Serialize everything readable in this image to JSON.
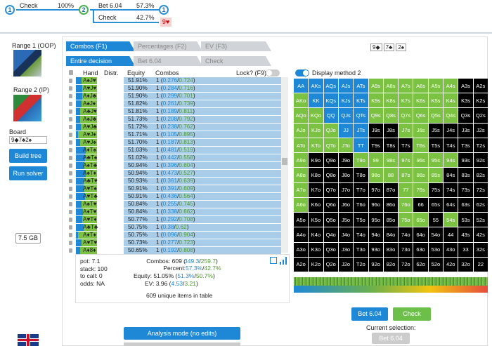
{
  "tree": {
    "n1": "1",
    "n2": "2",
    "n3": "1",
    "a1_label": "Check",
    "a1_pct": "100%",
    "a2_label": "Bet 6.04",
    "a2_pct": "57.3%",
    "a3_label": "Check",
    "a3_pct": "42.7%",
    "card": "9♥"
  },
  "left": {
    "range1": "Range 1 (OOP)",
    "range2": "Range 2 (IP)",
    "board_label": "Board",
    "board_value": "9◆7♣2♠",
    "build_tree": "Build tree",
    "run_solver": "Run solver",
    "memory": "7.5 GB"
  },
  "tabs": {
    "combos": "Combos (F1)",
    "percentages": "Percentages (F2)",
    "ev": "EV (F3)",
    "entire": "Entire decision",
    "bet": "Bet 6.04",
    "check": "Check"
  },
  "board_cards": [
    "9◆",
    "7♣",
    "2♠"
  ],
  "table": {
    "h_hand": "Hand",
    "h_distr": "Distr.",
    "h_equity": "Equity",
    "h_combos": "Combos",
    "lock": "Lock? (F9)",
    "rows": [
      {
        "hand": "A♠J♥",
        "eq": "51.91%",
        "c": "1",
        "a": "0.276",
        "b": "0.724"
      },
      {
        "hand": "A♥J♥",
        "eq": "51.90%",
        "c": "1",
        "a": "0.284",
        "b": "0.716"
      },
      {
        "hand": "A♦J♣",
        "eq": "51.90%",
        "c": "1",
        "a": "0.299",
        "b": "0.701"
      },
      {
        "hand": "A♠J♦",
        "eq": "51.82%",
        "c": "1",
        "a": "0.261",
        "b": "0.739"
      },
      {
        "hand": "A♣J♥",
        "eq": "51.81%",
        "c": "1",
        "a": "0.189",
        "b": "0.811"
      },
      {
        "hand": "A♠J♣",
        "eq": "51.73%",
        "c": "1",
        "a": "0.208",
        "b": "0.792"
      },
      {
        "hand": "A♥J♣",
        "eq": "51.72%",
        "c": "1",
        "a": "0.238",
        "b": "0.762"
      },
      {
        "hand": "A♥J♦",
        "eq": "51.71%",
        "c": "1",
        "a": "0.105",
        "b": "0.895"
      },
      {
        "hand": "A♥J♠",
        "eq": "51.70%",
        "c": "1",
        "a": "0.187",
        "b": "0.813"
      },
      {
        "hand": "A♦T♠",
        "eq": "51.03%",
        "c": "1",
        "a": "0.481",
        "b": "0.519"
      },
      {
        "hand": "A♣T♠",
        "eq": "51.02%",
        "c": "1",
        "a": "0.442",
        "b": "0.558"
      },
      {
        "hand": "A♠T♣",
        "eq": "50.94%",
        "c": "1",
        "a": "0.396",
        "b": "0.604"
      },
      {
        "hand": "A♠T♦",
        "eq": "50.94%",
        "c": "1",
        "a": "0.473",
        "b": "0.527"
      },
      {
        "hand": "A♣T♥",
        "eq": "50.93%",
        "c": "1",
        "a": "0.361",
        "b": "0.639"
      },
      {
        "hand": "A♥T♠",
        "eq": "50.91%",
        "c": "1",
        "a": "0.391",
        "b": "0.609"
      },
      {
        "hand": "A♥T♣",
        "eq": "50.91%",
        "c": "1",
        "a": "0.436",
        "b": "0.564"
      },
      {
        "hand": "A♠T♥",
        "eq": "50.84%",
        "c": "1",
        "a": "0.255",
        "b": "0.745"
      },
      {
        "hand": "A♦T♥",
        "eq": "50.84%",
        "c": "1",
        "a": "0.338",
        "b": "0.662"
      },
      {
        "hand": "A♥T♦",
        "eq": "50.77%",
        "c": "1",
        "a": "0.292",
        "b": "0.708"
      },
      {
        "hand": "A♣T♣",
        "eq": "50.75%",
        "c": "1",
        "a": "0.38",
        "b": "0.62"
      },
      {
        "hand": "A♦T♦",
        "eq": "50.75%",
        "c": "1",
        "a": "0.096",
        "b": "0.904"
      },
      {
        "hand": "A♥T♥",
        "eq": "50.73%",
        "c": "1",
        "a": "0.277",
        "b": "0.723"
      },
      {
        "hand": "A♦8♦",
        "eq": "50.65%",
        "c": "1",
        "a": "0.192",
        "b": "0.808"
      }
    ]
  },
  "summary": {
    "pot": "pot: 7.1",
    "stack": "stack: 100",
    "tocall": "to call: 0",
    "odds": "odds: NA",
    "combos_lbl": "Combos: 609 (",
    "combos_a": "349.3",
    "combos_sep": "/",
    "combos_b": "259.7",
    "combos_end": ")",
    "percent_lbl": "Percent: ",
    "percent_a": "57.3%",
    "percent_b": "42.7%",
    "equity_lbl": "Equity: 51.05% (",
    "equity_a": "51.3%",
    "equity_b": "50.7%",
    "ev_lbl": "EV: 3.96 (",
    "ev_a": "4.53",
    "ev_b": "3.21",
    "unique": "609 unique items in table"
  },
  "display_method": "Display method 2",
  "grid": [
    [
      "AA",
      "AKs",
      "AQs",
      "AJs",
      "ATs",
      "A9s",
      "A8s",
      "A7s",
      "A6s",
      "A5s",
      "A4s",
      "A3s",
      "A2s"
    ],
    [
      "AKo",
      "KK",
      "KQs",
      "KJs",
      "KTs",
      "K9s",
      "K8s",
      "K7s",
      "K6s",
      "K5s",
      "K4s",
      "K3s",
      "K2s"
    ],
    [
      "AQo",
      "KQo",
      "QQ",
      "QJs",
      "QTs",
      "Q9s",
      "Q8s",
      "Q7s",
      "Q6s",
      "Q5s",
      "Q4s",
      "Q3s",
      "Q2s"
    ],
    [
      "AJo",
      "KJo",
      "QJo",
      "JJ",
      "JTs",
      "J9s",
      "J8s",
      "J7s",
      "J6s",
      "J5s",
      "J4s",
      "J3s",
      "J2s"
    ],
    [
      "ATo",
      "KTo",
      "QTo",
      "JTo",
      "TT",
      "T9s",
      "T8s",
      "T7s",
      "T6s",
      "T5s",
      "T4s",
      "T3s",
      "T2s"
    ],
    [
      "A9o",
      "K9o",
      "Q9o",
      "J9o",
      "T9o",
      "99",
      "98s",
      "97s",
      "96s",
      "95s",
      "94s",
      "93s",
      "92s"
    ],
    [
      "A8o",
      "K8o",
      "Q8o",
      "J8o",
      "T8o",
      "98o",
      "88",
      "87s",
      "86s",
      "85s",
      "84s",
      "83s",
      "82s"
    ],
    [
      "A7o",
      "K7o",
      "Q7o",
      "J7o",
      "T7o",
      "97o",
      "87o",
      "77",
      "76s",
      "75s",
      "74s",
      "73s",
      "72s"
    ],
    [
      "A6o",
      "K6o",
      "Q6o",
      "J6o",
      "T6o",
      "96o",
      "86o",
      "76o",
      "66",
      "65s",
      "64s",
      "63s",
      "62s"
    ],
    [
      "A5o",
      "K5o",
      "Q5o",
      "J5o",
      "T5o",
      "95o",
      "85o",
      "75o",
      "65o",
      "55",
      "54s",
      "53s",
      "52s"
    ],
    [
      "A4o",
      "K4o",
      "Q4o",
      "J4o",
      "T4o",
      "94o",
      "84o",
      "74o",
      "64o",
      "54o",
      "44",
      "43s",
      "42s"
    ],
    [
      "A3o",
      "K3o",
      "Q3o",
      "J3o",
      "T3o",
      "93o",
      "83o",
      "73o",
      "63o",
      "53o",
      "43o",
      "33",
      "32s"
    ],
    [
      "A2o",
      "K2o",
      "Q2o",
      "J2o",
      "T2o",
      "92o",
      "82o",
      "72o",
      "62o",
      "52o",
      "42o",
      "32o",
      "22"
    ]
  ],
  "grid_colors": {
    "bet": "#1e88d6",
    "check": "#7cc242",
    "none": "#000000"
  },
  "actions": {
    "bet": "Bet 6.04",
    "check": "Check",
    "current": "Current selection:",
    "current_val": "Bet 6.04"
  },
  "analysis": "Analysis mode (no edits)"
}
